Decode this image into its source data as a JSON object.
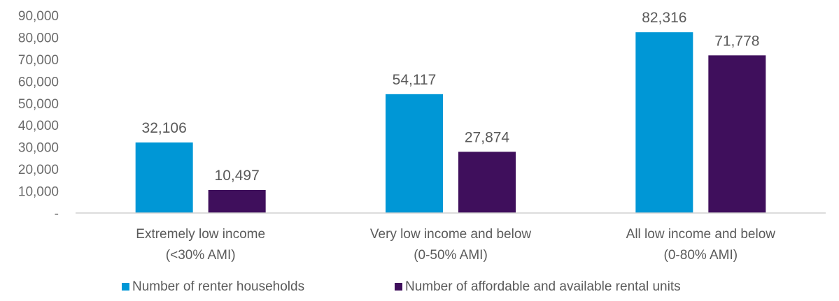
{
  "chart_data": {
    "type": "bar",
    "title": "",
    "xlabel": "",
    "ylabel": "",
    "ylim": [
      0,
      90000
    ],
    "y_ticks": [
      0,
      10000,
      20000,
      30000,
      40000,
      50000,
      60000,
      70000,
      80000,
      90000
    ],
    "y_tick_labels": [
      "-",
      "10,000",
      "20,000",
      "30,000",
      "40,000",
      "50,000",
      "60,000",
      "70,000",
      "80,000",
      "90,000"
    ],
    "grid": false,
    "legend_position": "bottom",
    "categories": [
      [
        "Extremely low income",
        "(<30% AMI)"
      ],
      [
        "Very low income and below",
        "(0-50% AMI)"
      ],
      [
        "All low income and below",
        "(0-80% AMI)"
      ]
    ],
    "series": [
      {
        "name": "Number of renter households",
        "color": "#0097d6",
        "values": [
          32106,
          54117,
          82316
        ],
        "labels": [
          "32,106",
          "54,117",
          "82,316"
        ]
      },
      {
        "name": "Number of affordable and available rental units",
        "color": "#3f0f5c",
        "values": [
          10497,
          27874,
          71778
        ],
        "labels": [
          "10,497",
          "27,874",
          "71,778"
        ]
      }
    ],
    "axis_color": "#d0d0d0"
  }
}
